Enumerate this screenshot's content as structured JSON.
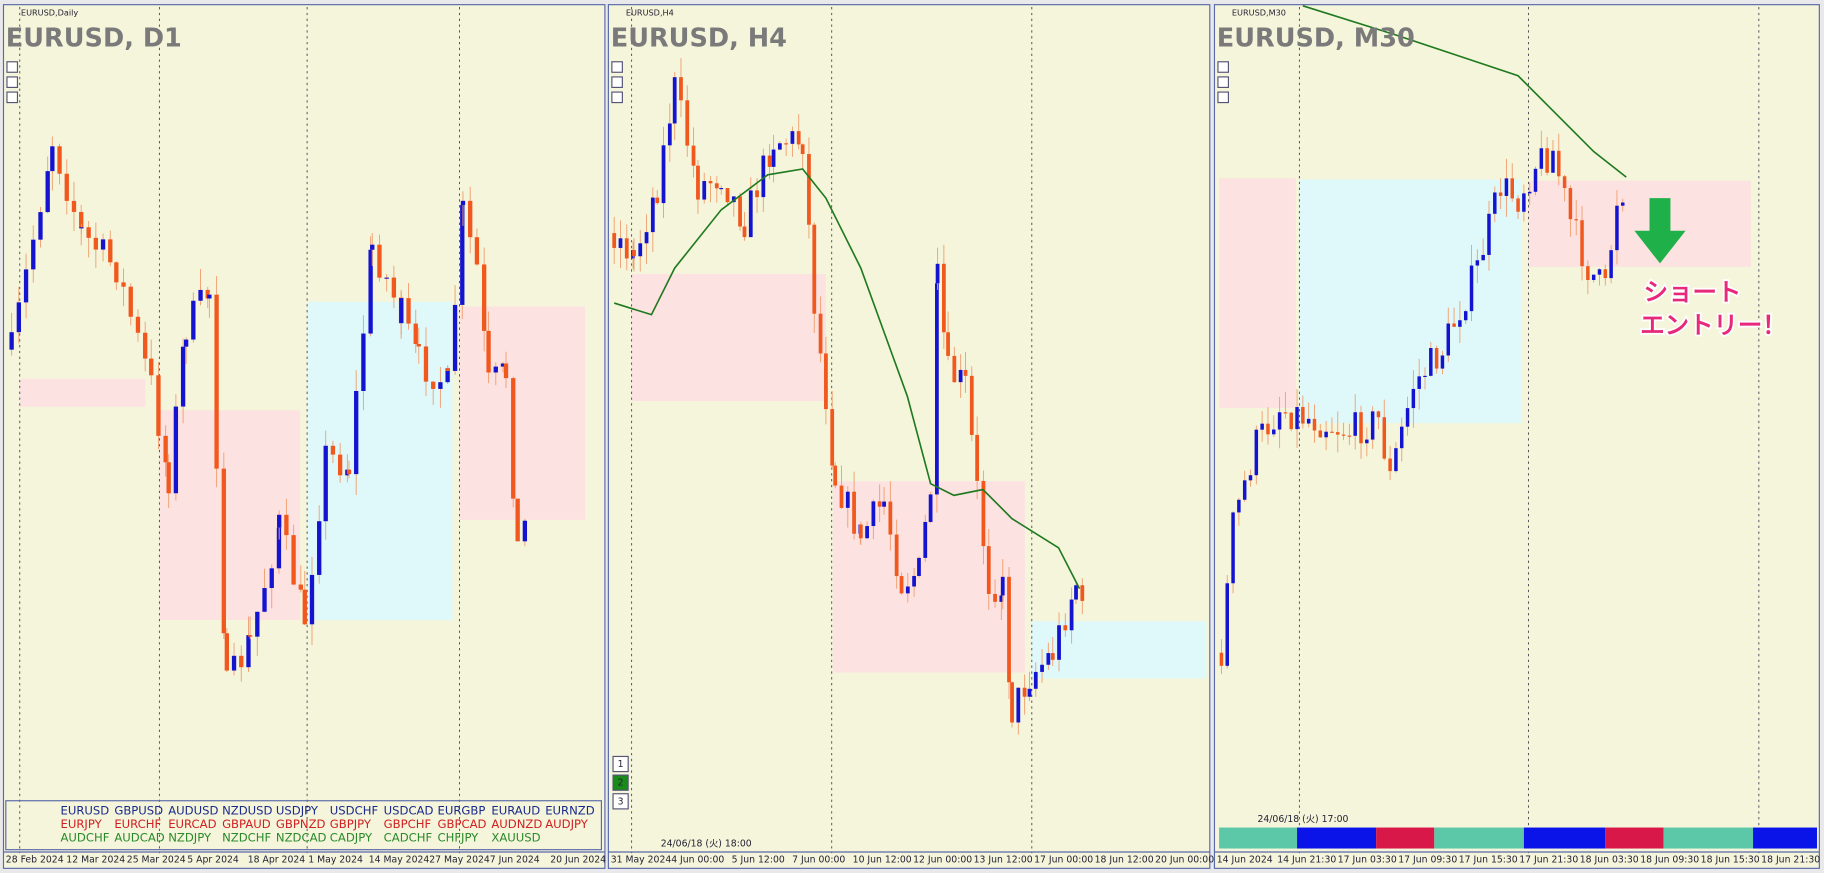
{
  "panels": [
    {
      "small_title": "EURUSD,Daily",
      "title": "EURUSD, D1",
      "x_labels": [
        "28 Feb 2024",
        "12 Mar 2024",
        "25 Mar 2024",
        "5 Apr 2024",
        "18 Apr 2024",
        "1 May 2024",
        "14 May 2024",
        "27 May 2024",
        "7 Jun 2024",
        "20 Jun 2024"
      ]
    },
    {
      "small_title": "EURUSD,H4",
      "title": "EURUSD, H4",
      "x_labels": [
        "31 May 2024",
        "4 Jun 00:00",
        "5 Jun 12:00",
        "7 Jun 00:00",
        "10 Jun 12:00",
        "12 Jun 00:00",
        "13 Jun 12:00",
        "17 Jun 00:00",
        "18 Jun 12:00",
        "20 Jun 00:00"
      ],
      "stamp": "24/06/18 (火) 18:00",
      "buttons": [
        "1",
        "2",
        "3"
      ]
    },
    {
      "small_title": "EURUSD,M30",
      "title": "EURUSD, M30",
      "x_labels": [
        "14 Jun 2024",
        "14 Jun 21:30",
        "17 Jun 03:30",
        "17 Jun 09:30",
        "17 Jun 15:30",
        "17 Jun 21:30",
        "18 Jun 03:30",
        "18 Jun 09:30",
        "18 Jun 15:30",
        "18 Jun 21:30"
      ],
      "stamp": "24/06/18 (火) 17:00"
    }
  ],
  "symbols": [
    {
      "color": "#1a2a8a",
      "items": [
        "EURUSD",
        "GBPUSD",
        "AUDUSD",
        "NZDUSD",
        "USDJPY",
        "USDCHF",
        "USDCAD",
        "EURGBP",
        "EURAUD",
        "EURNZD"
      ]
    },
    {
      "color": "#d02020",
      "items": [
        "EURJPY",
        "EURCHF",
        "EURCAD",
        "GBPAUD",
        "GBPNZD",
        "GBPJPY",
        "GBPCHF",
        "GBPCAD",
        "AUDNZD",
        "AUDJPY"
      ]
    },
    {
      "color": "#2a8a2a",
      "items": [
        "AUDCHF",
        "AUDCAD",
        "NZDJPY",
        "NZDCHF",
        "NZDCAD",
        "CADJPY",
        "CADCHF",
        "CHFJPY",
        "XAUUSD"
      ]
    }
  ],
  "annotation": [
    "ショート",
    "エントリー！"
  ]
}
